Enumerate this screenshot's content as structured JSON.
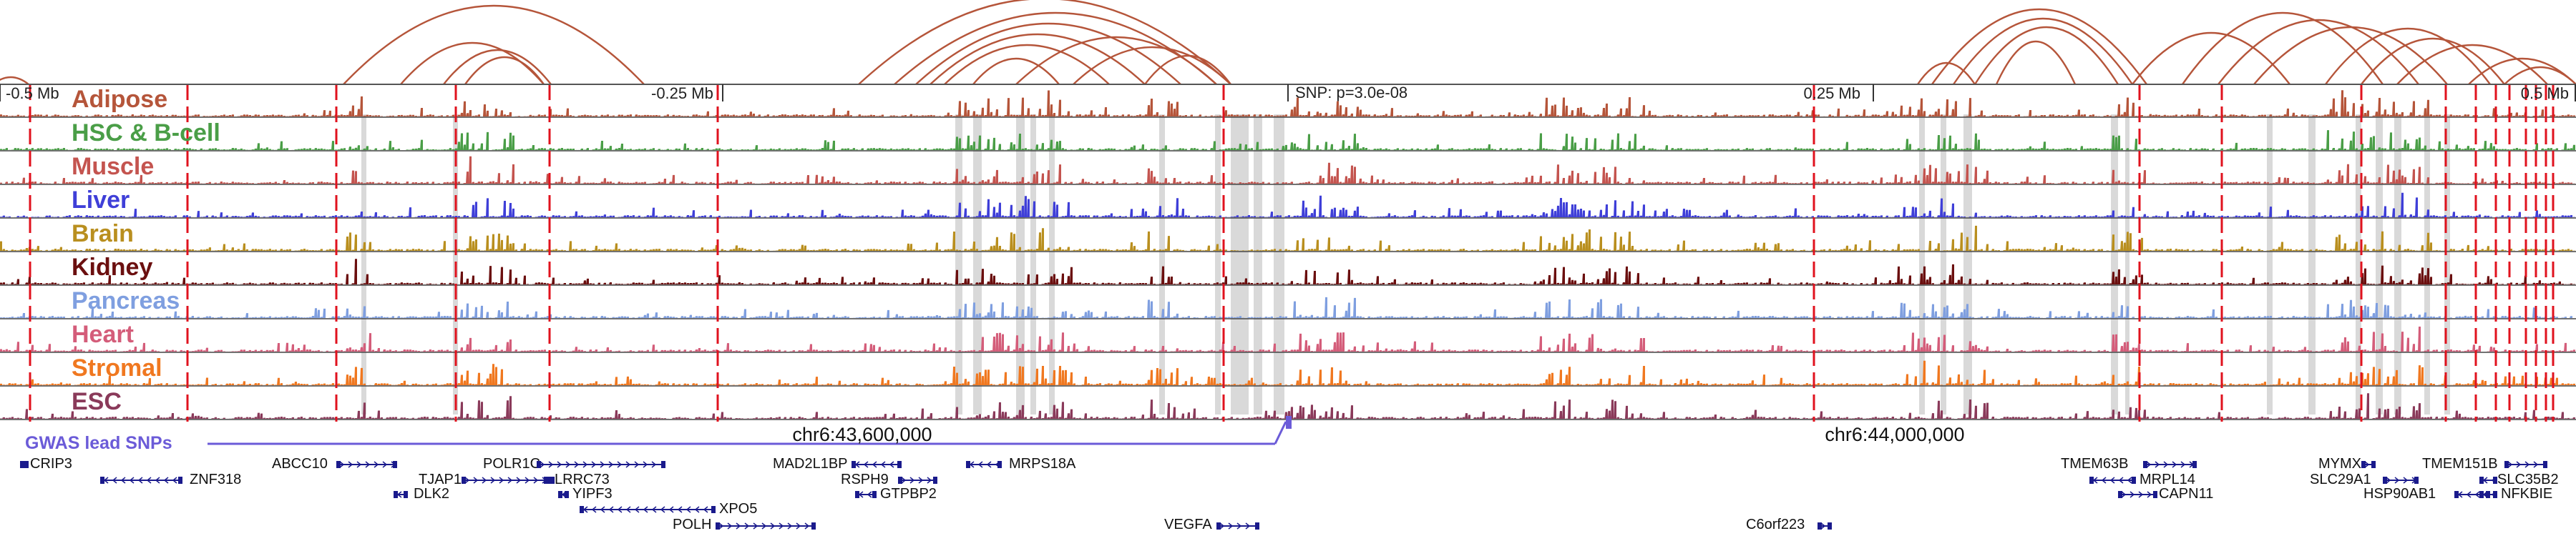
{
  "scale": {
    "ticks": [
      "-0.5 Mb",
      "-0.25 Mb",
      "0.25 Mb",
      "0.5 Mb"
    ],
    "snp_label": "SNP: p=3.0e-08"
  },
  "tracks": [
    {
      "label": "Adipose",
      "color": "#b5553a"
    },
    {
      "label": "HSC & B-cell",
      "color": "#4a9e47"
    },
    {
      "label": "Muscle",
      "color": "#c4544f"
    },
    {
      "label": "Liver",
      "color": "#3f3fd8"
    },
    {
      "label": "Brain",
      "color": "#b98f1f"
    },
    {
      "label": "Kidney",
      "color": "#6b0f0f"
    },
    {
      "label": "Pancreas",
      "color": "#7f9fe0"
    },
    {
      "label": "Heart",
      "color": "#d45d7a"
    },
    {
      "label": "Stromal",
      "color": "#f07820"
    },
    {
      "label": "ESC",
      "color": "#8a3a5a"
    }
  ],
  "gwas": {
    "label": "GWAS lead SNPs",
    "color": "#6b5bd8"
  },
  "coordinates": [
    "chr6:43,600,000",
    "chr6:44,000,000"
  ],
  "genes": [
    "CRIP3",
    "ZNF318",
    "ABCC10",
    "TJAP1",
    "DLK2",
    "POLR1C",
    "LRRC73",
    "YIPF3",
    "XPO5",
    "POLH",
    "MAD2L1BP",
    "RSPH9",
    "GTPBP2",
    "MRPS18A",
    "VEGFA",
    "C6orf223",
    "TMEM63B",
    "MRPL14",
    "CAPN11",
    "MYMX",
    "SLC29A1",
    "HSP90AB1",
    "TMEM151B",
    "SLC35B2",
    "NFKBIE"
  ],
  "colors": {
    "arc": "#b5553a",
    "highlight": "#d9d9d9",
    "dashed_line": "#e0121e",
    "gene_line": "#1a1a8c"
  }
}
